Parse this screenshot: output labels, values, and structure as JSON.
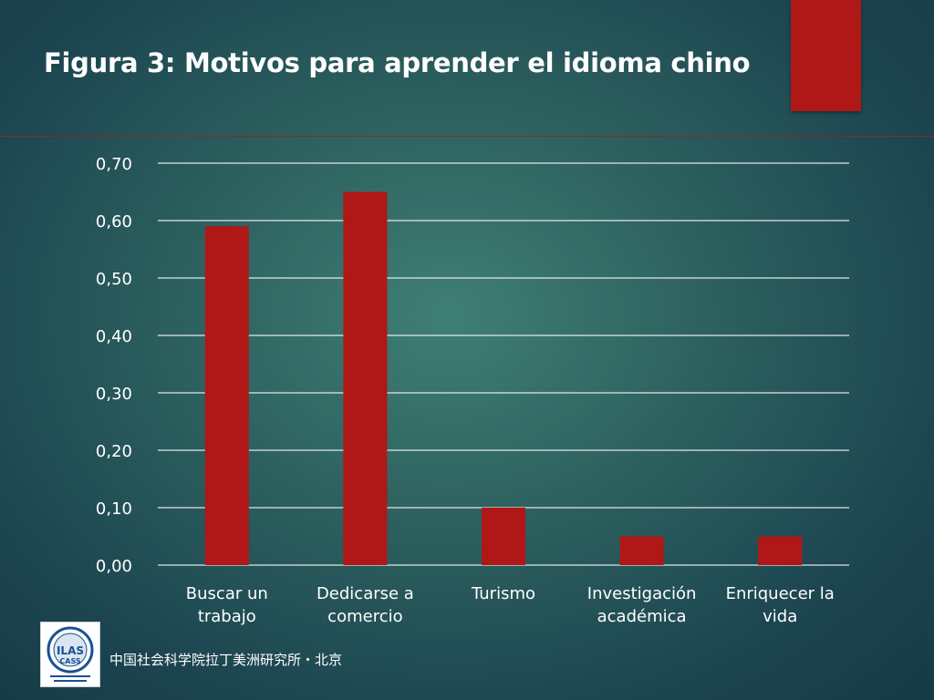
{
  "title": "Figura 3: Motivos para aprender el idioma chino",
  "footer": {
    "text": "中国社会科学院拉丁美洲研究所・北京",
    "logo_text": "ILAS CASS"
  },
  "colors": {
    "bar": "#b01717",
    "accent": "#b01717",
    "gridline": "#ffffff",
    "text": "#ffffff"
  },
  "chart_data": {
    "type": "bar",
    "categories": [
      [
        "Buscar un",
        "trabajo"
      ],
      [
        "Dedicarse a",
        "comercio"
      ],
      [
        "Turismo"
      ],
      [
        "Investigación",
        "académica"
      ],
      [
        "Enriquecer la",
        "vida"
      ]
    ],
    "values": [
      0.59,
      0.65,
      0.1,
      0.05,
      0.05
    ],
    "ylim": [
      0,
      0.7
    ],
    "yticks": [
      "0,00",
      "0,10",
      "0,20",
      "0,30",
      "0,40",
      "0,50",
      "0,60",
      "0,70"
    ],
    "grid": true,
    "legend": "none",
    "xlabel": "",
    "ylabel": ""
  }
}
